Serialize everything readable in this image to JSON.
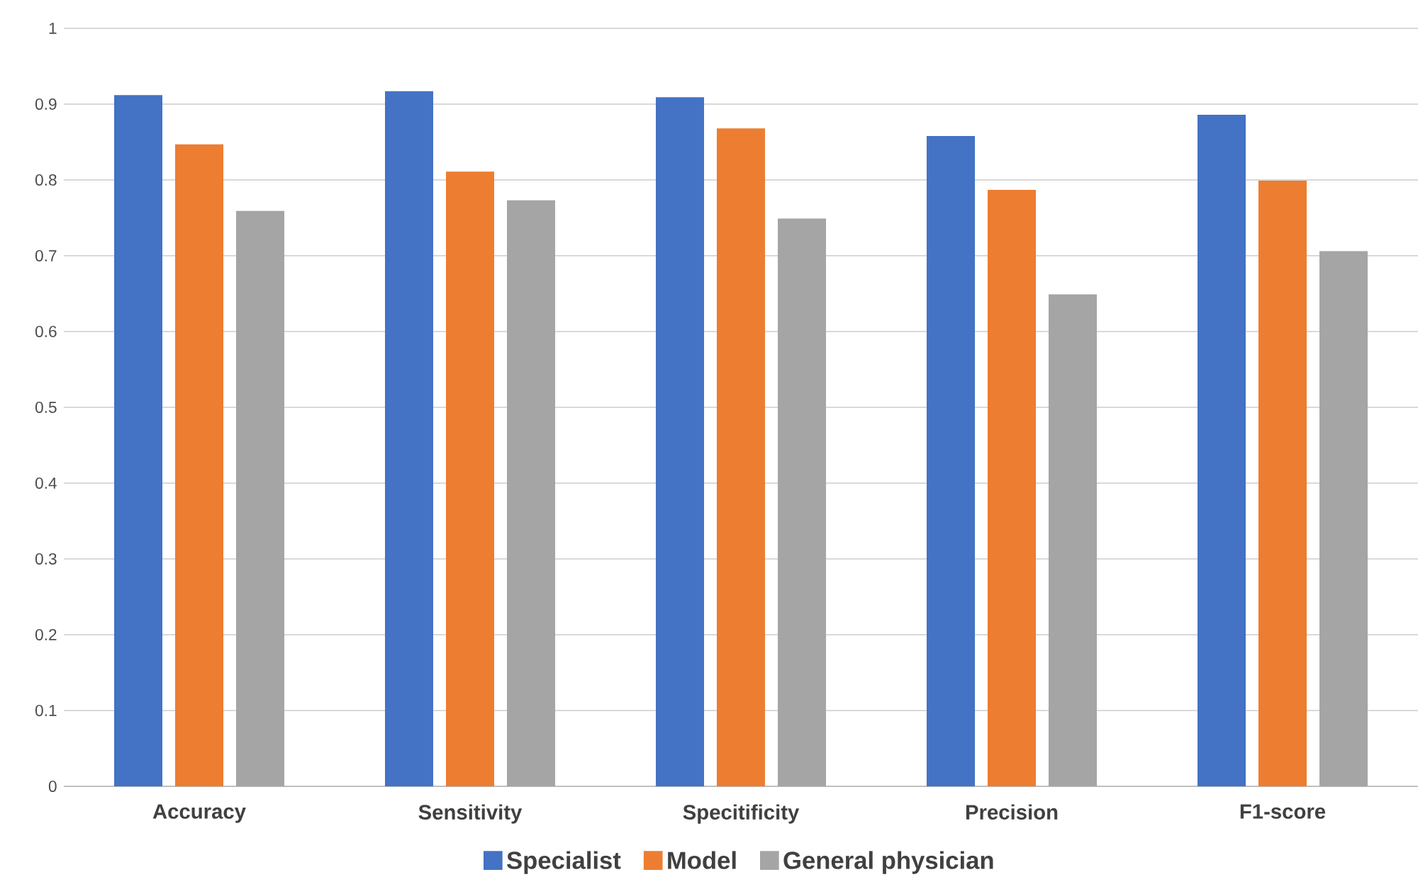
{
  "chart_data": {
    "type": "bar",
    "categories": [
      "Accuracy",
      "Sensitivity",
      "Specitificity",
      "Precision",
      "F1-score"
    ],
    "series": [
      {
        "name": "Specialist",
        "color": "#4472c4",
        "values": [
          0.912,
          0.917,
          0.909,
          0.858,
          0.886
        ]
      },
      {
        "name": "Model",
        "color": "#ed7d31",
        "values": [
          0.847,
          0.811,
          0.868,
          0.787,
          0.799
        ]
      },
      {
        "name": "General physician",
        "color": "#a5a5a5",
        "values": [
          0.759,
          0.773,
          0.749,
          0.649,
          0.706
        ]
      }
    ],
    "ylim": [
      0,
      1
    ],
    "yticks": [
      0,
      0.1,
      0.2,
      0.3,
      0.4,
      0.5,
      0.6,
      0.7,
      0.8,
      0.9,
      1
    ],
    "grid": "y",
    "legend": "bottom"
  }
}
